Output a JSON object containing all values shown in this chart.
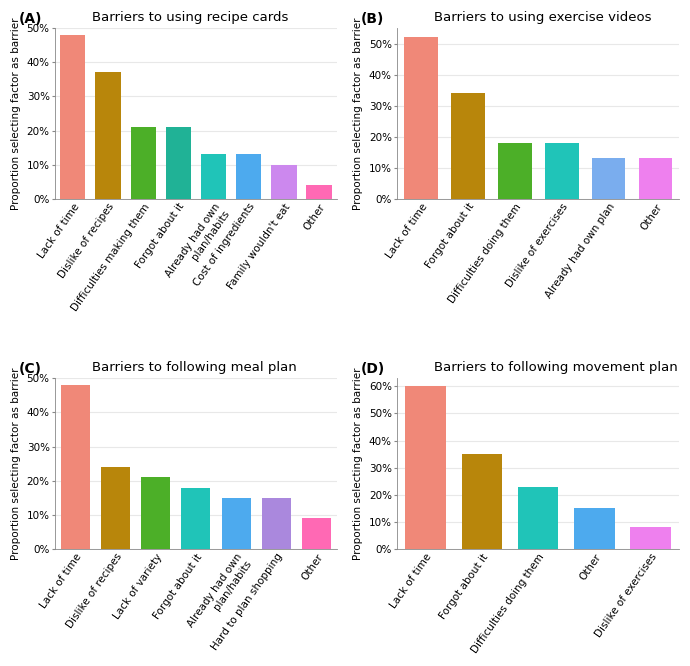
{
  "panels": [
    {
      "label": "(A)",
      "title": "Barriers to using recipe cards",
      "categories": [
        "Lack of time",
        "Dislike of recipes",
        "Difficulties making them",
        "Forgot about it",
        "Already had own\nplan/habits",
        "Cost of ingredients",
        "Family wouldn't eat",
        "Other"
      ],
      "values": [
        48,
        37,
        21,
        21,
        13,
        13,
        10,
        4
      ],
      "colors": [
        "#F08878",
        "#B8860B",
        "#4CAF28",
        "#20B296",
        "#20C4B8",
        "#4DAAEE",
        "#CC88EE",
        "#FF69B4"
      ],
      "ylim": [
        0,
        50
      ],
      "yticks": [
        0,
        10,
        20,
        30,
        40,
        50
      ]
    },
    {
      "label": "(B)",
      "title": "Barriers to using exercise videos",
      "categories": [
        "Lack of time",
        "Forgot about it",
        "Difficulties doing them",
        "Dislike of exercises",
        "Already had own plan",
        "Other"
      ],
      "values": [
        52,
        34,
        18,
        18,
        13,
        13
      ],
      "colors": [
        "#F08878",
        "#B8860B",
        "#4CAF28",
        "#20C4B8",
        "#7AADEE",
        "#EE80EE"
      ],
      "ylim": [
        0,
        55
      ],
      "yticks": [
        0,
        10,
        20,
        30,
        40,
        50
      ]
    },
    {
      "label": "(C)",
      "title": "Barriers to following meal plan",
      "categories": [
        "Lack of time",
        "Dislike of recipes",
        "Lack of variety",
        "Forgot about it",
        "Already had own\nplan/habits",
        "Hard to plan shopping",
        "Other"
      ],
      "values": [
        48,
        24,
        21,
        18,
        15,
        15,
        9
      ],
      "colors": [
        "#F08878",
        "#B8860B",
        "#4CAF28",
        "#20C4B8",
        "#4DAAEE",
        "#AA88DD",
        "#FF69B4"
      ],
      "ylim": [
        0,
        50
      ],
      "yticks": [
        0,
        10,
        20,
        30,
        40,
        50
      ]
    },
    {
      "label": "(D)",
      "title": "Barriers to following movement plan",
      "categories": [
        "Lack of time",
        "Forgot about it",
        "Difficulties doing them",
        "Other",
        "Dislike of exercises"
      ],
      "values": [
        60,
        35,
        23,
        15,
        8
      ],
      "colors": [
        "#F08878",
        "#B8860B",
        "#20C4B8",
        "#4DAAEE",
        "#EE80EE"
      ],
      "ylim": [
        0,
        63
      ],
      "yticks": [
        0,
        10,
        20,
        30,
        40,
        50,
        60
      ]
    }
  ],
  "ylabel": "Proportion selecting factor as barrier",
  "background_color": "#FFFFFF",
  "tick_label_fontsize": 7.5,
  "axis_label_fontsize": 7.5,
  "title_fontsize": 9.5,
  "panel_label_fontsize": 10
}
